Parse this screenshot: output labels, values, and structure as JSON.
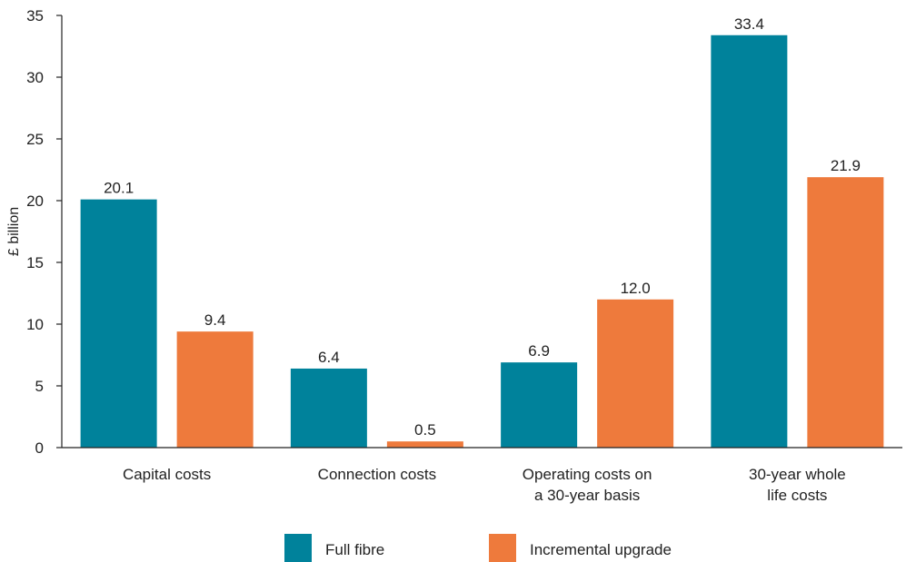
{
  "chart_data": {
    "type": "bar",
    "title": "",
    "xlabel": "",
    "ylabel": "£ billion",
    "ylim": [
      0,
      35
    ],
    "yticks": [
      0,
      5,
      10,
      15,
      20,
      25,
      30,
      35
    ],
    "grid": false,
    "legend_position": "bottom",
    "categories": [
      [
        "Capital costs"
      ],
      [
        "Connection costs"
      ],
      [
        "Operating costs on",
        "a 30-year basis"
      ],
      [
        "30-year whole",
        "life costs"
      ]
    ],
    "series": [
      {
        "name": "Full fibre",
        "color": "#00829b",
        "values": [
          20.1,
          6.4,
          6.9,
          33.4
        ]
      },
      {
        "name": "Incremental upgrade",
        "color": "#ee7a3c",
        "values": [
          9.4,
          0.5,
          12.0,
          21.9
        ]
      }
    ]
  }
}
